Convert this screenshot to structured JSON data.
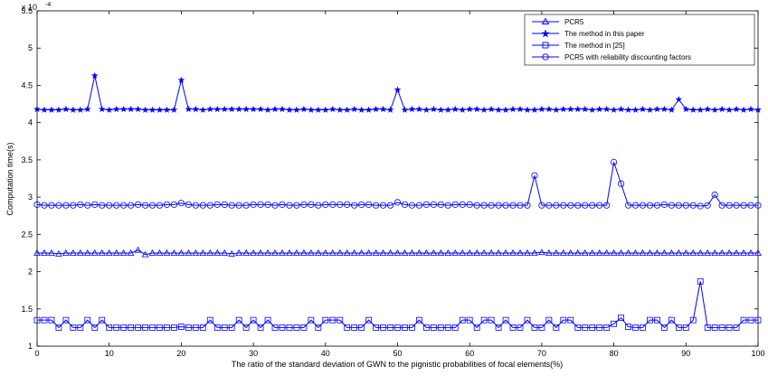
{
  "chart_data": {
    "type": "line",
    "xlabel": "The ratio of the standard deviation  of GWN to the pignistic probabilities of focal elements(%)",
    "ylabel": "Computation time(s)",
    "y_multiplier": "x 10",
    "y_exponent": "-4",
    "xlim": [
      0,
      100
    ],
    "ylim": [
      1,
      5.5
    ],
    "xticks": [
      0,
      10,
      20,
      30,
      40,
      50,
      60,
      70,
      80,
      90,
      100
    ],
    "yticks": [
      1,
      1.5,
      2,
      2.5,
      3,
      3.5,
      4,
      4.5,
      5,
      5.5
    ],
    "ytick_labels": [
      "1",
      "1.5",
      "2",
      "2.5",
      "3",
      "3.5",
      "4",
      "4.5",
      "5",
      "5.5"
    ],
    "grid": false,
    "legend_position": "top-right",
    "line_color": "#0000ff",
    "x": [
      0,
      1,
      2,
      3,
      4,
      5,
      6,
      7,
      8,
      9,
      10,
      11,
      12,
      13,
      14,
      15,
      16,
      17,
      18,
      19,
      20,
      21,
      22,
      23,
      24,
      25,
      26,
      27,
      28,
      29,
      30,
      31,
      32,
      33,
      34,
      35,
      36,
      37,
      38,
      39,
      40,
      41,
      42,
      43,
      44,
      45,
      46,
      47,
      48,
      49,
      50,
      51,
      52,
      53,
      54,
      55,
      56,
      57,
      58,
      59,
      60,
      61,
      62,
      63,
      64,
      65,
      66,
      67,
      68,
      69,
      70,
      71,
      72,
      73,
      74,
      75,
      76,
      77,
      78,
      79,
      80,
      81,
      82,
      83,
      84,
      85,
      86,
      87,
      88,
      89,
      90,
      91,
      92,
      93,
      94,
      95,
      96,
      97,
      98,
      99,
      100
    ],
    "series": [
      {
        "name": "PCR5",
        "marker": "triangle",
        "values": [
          2.25,
          2.25,
          2.25,
          2.24,
          2.25,
          2.25,
          2.25,
          2.25,
          2.25,
          2.25,
          2.25,
          2.25,
          2.25,
          2.25,
          2.29,
          2.23,
          2.25,
          2.25,
          2.25,
          2.25,
          2.25,
          2.25,
          2.25,
          2.25,
          2.25,
          2.25,
          2.25,
          2.24,
          2.25,
          2.25,
          2.25,
          2.25,
          2.25,
          2.25,
          2.25,
          2.25,
          2.25,
          2.25,
          2.25,
          2.25,
          2.25,
          2.25,
          2.25,
          2.25,
          2.25,
          2.25,
          2.25,
          2.25,
          2.25,
          2.25,
          2.25,
          2.25,
          2.25,
          2.25,
          2.25,
          2.25,
          2.25,
          2.25,
          2.25,
          2.25,
          2.25,
          2.25,
          2.25,
          2.25,
          2.25,
          2.25,
          2.25,
          2.25,
          2.25,
          2.25,
          2.26,
          2.25,
          2.25,
          2.25,
          2.25,
          2.25,
          2.25,
          2.25,
          2.25,
          2.25,
          2.25,
          2.25,
          2.25,
          2.25,
          2.25,
          2.25,
          2.25,
          2.25,
          2.25,
          2.25,
          2.25,
          2.25,
          2.25,
          2.25,
          2.25,
          2.25,
          2.25,
          2.25,
          2.25,
          2.25,
          2.25
        ]
      },
      {
        "name": "The method in this paper",
        "marker": "star",
        "values": [
          4.18,
          4.17,
          4.17,
          4.17,
          4.18,
          4.17,
          4.17,
          4.18,
          4.63,
          4.18,
          4.17,
          4.18,
          4.18,
          4.18,
          4.18,
          4.17,
          4.17,
          4.17,
          4.17,
          4.17,
          4.57,
          4.18,
          4.18,
          4.17,
          4.18,
          4.18,
          4.18,
          4.18,
          4.18,
          4.18,
          4.18,
          4.18,
          4.17,
          4.18,
          4.18,
          4.17,
          4.17,
          4.18,
          4.17,
          4.17,
          4.17,
          4.18,
          4.17,
          4.17,
          4.18,
          4.17,
          4.17,
          4.18,
          4.18,
          4.17,
          4.44,
          4.17,
          4.18,
          4.18,
          4.17,
          4.18,
          4.17,
          4.17,
          4.18,
          4.17,
          4.18,
          4.18,
          4.17,
          4.18,
          4.17,
          4.17,
          4.18,
          4.18,
          4.17,
          4.17,
          4.18,
          4.18,
          4.17,
          4.18,
          4.18,
          4.18,
          4.18,
          4.17,
          4.18,
          4.18,
          4.17,
          4.18,
          4.17,
          4.17,
          4.18,
          4.17,
          4.18,
          4.18,
          4.17,
          4.31,
          4.18,
          4.17,
          4.17,
          4.18,
          4.17,
          4.18,
          4.17,
          4.18,
          4.17,
          4.18,
          4.17
        ]
      },
      {
        "name": "The method in [25]",
        "marker": "square",
        "values": [
          1.35,
          1.35,
          1.35,
          1.25,
          1.35,
          1.25,
          1.25,
          1.35,
          1.25,
          1.35,
          1.25,
          1.25,
          1.25,
          1.25,
          1.25,
          1.25,
          1.25,
          1.25,
          1.25,
          1.25,
          1.26,
          1.25,
          1.25,
          1.25,
          1.35,
          1.25,
          1.25,
          1.25,
          1.35,
          1.25,
          1.35,
          1.25,
          1.35,
          1.25,
          1.25,
          1.25,
          1.25,
          1.25,
          1.35,
          1.25,
          1.35,
          1.35,
          1.35,
          1.25,
          1.25,
          1.25,
          1.35,
          1.25,
          1.25,
          1.25,
          1.25,
          1.25,
          1.25,
          1.35,
          1.25,
          1.25,
          1.25,
          1.25,
          1.25,
          1.35,
          1.35,
          1.25,
          1.35,
          1.35,
          1.25,
          1.35,
          1.25,
          1.25,
          1.35,
          1.25,
          1.25,
          1.35,
          1.25,
          1.35,
          1.35,
          1.25,
          1.25,
          1.25,
          1.25,
          1.25,
          1.3,
          1.38,
          1.26,
          1.25,
          1.25,
          1.35,
          1.35,
          1.25,
          1.35,
          1.25,
          1.25,
          1.35,
          1.87,
          1.25,
          1.25,
          1.25,
          1.25,
          1.25,
          1.35,
          1.35,
          1.35
        ]
      },
      {
        "name": "PCR5 with reliability discounting factors",
        "marker": "circle",
        "values": [
          2.9,
          2.89,
          2.89,
          2.89,
          2.89,
          2.89,
          2.9,
          2.89,
          2.9,
          2.89,
          2.89,
          2.89,
          2.89,
          2.89,
          2.9,
          2.89,
          2.89,
          2.89,
          2.9,
          2.9,
          2.92,
          2.9,
          2.89,
          2.89,
          2.89,
          2.9,
          2.9,
          2.89,
          2.89,
          2.89,
          2.9,
          2.9,
          2.9,
          2.89,
          2.9,
          2.89,
          2.89,
          2.9,
          2.9,
          2.89,
          2.9,
          2.9,
          2.9,
          2.9,
          2.89,
          2.9,
          2.9,
          2.89,
          2.89,
          2.89,
          2.93,
          2.9,
          2.89,
          2.89,
          2.9,
          2.9,
          2.9,
          2.89,
          2.9,
          2.9,
          2.9,
          2.89,
          2.89,
          2.89,
          2.89,
          2.89,
          2.89,
          2.89,
          2.89,
          3.29,
          2.89,
          2.89,
          2.89,
          2.89,
          2.89,
          2.89,
          2.89,
          2.89,
          2.89,
          2.89,
          3.47,
          3.18,
          2.89,
          2.89,
          2.89,
          2.89,
          2.89,
          2.9,
          2.89,
          2.89,
          2.89,
          2.89,
          2.88,
          2.89,
          3.03,
          2.89,
          2.89,
          2.89,
          2.89,
          2.89,
          2.89
        ]
      }
    ]
  }
}
